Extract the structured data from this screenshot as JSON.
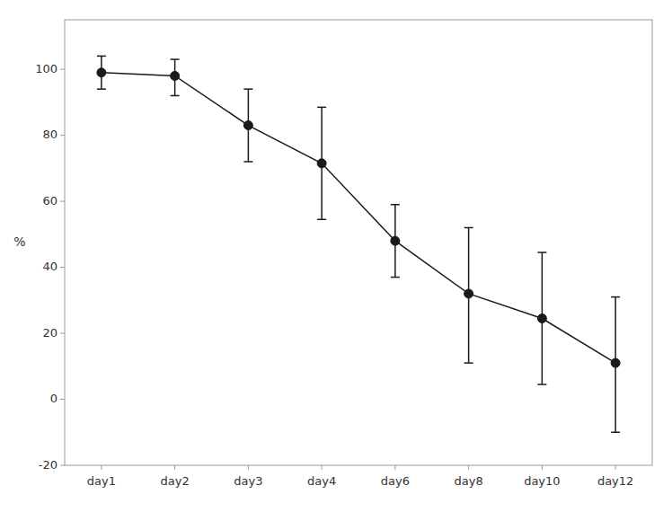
{
  "chart_data": {
    "type": "line",
    "categories": [
      "day1",
      "day2",
      "day3",
      "day4",
      "day6",
      "day8",
      "day10",
      "day12"
    ],
    "values": [
      99,
      98,
      83,
      71.5,
      48,
      32,
      24.5,
      11
    ],
    "yerr_upper": [
      5,
      5,
      11,
      17,
      11,
      20,
      20,
      20
    ],
    "yerr_lower": [
      5,
      6,
      11,
      17,
      11,
      21,
      20,
      21
    ],
    "ylabel": "%",
    "ylim": [
      -20,
      115
    ],
    "yticks": [
      -20,
      0,
      20,
      40,
      60,
      80,
      100
    ],
    "color": "#1a1a1a",
    "marker": "circle",
    "grid": false
  }
}
